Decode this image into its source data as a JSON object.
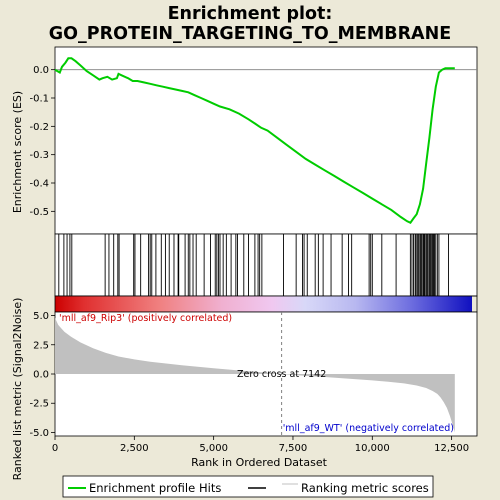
{
  "chart_data": {
    "type": "line",
    "title_line1": "Enrichment plot:",
    "title_line2": "GO_PROTEIN_TARGETING_TO_MEMBRANE",
    "xlabel": "Rank in Ordered Dataset",
    "ylabel_top": "Enrichment score (ES)",
    "ylabel_bottom": "Ranked list metric (Signal2Noise)",
    "xlim": [
      0,
      13300
    ],
    "x_ticks": [
      0,
      2500,
      5000,
      7500,
      10000,
      12500
    ],
    "x_tick_labels": [
      "0",
      "2,500",
      "5,000",
      "7,500",
      "10,000",
      "12,500"
    ],
    "es_ylim": [
      -0.58,
      0.08
    ],
    "es_ticks": [
      0.0,
      -0.1,
      -0.2,
      -0.3,
      -0.4,
      -0.5
    ],
    "es_tick_labels": [
      "0.0",
      "-0.1",
      "-0.2",
      "-0.3",
      "-0.4",
      "-0.5"
    ],
    "metric_ylim": [
      -5.3,
      5.3
    ],
    "metric_ticks": [
      5.0,
      2.5,
      0.0,
      -2.5,
      -5.0
    ],
    "metric_tick_labels": [
      "5.0",
      "2.5",
      "0.0",
      "-2.5",
      "-5.0"
    ],
    "es_curve": {
      "x": [
        0,
        150,
        220,
        330,
        420,
        520,
        650,
        800,
        1000,
        1200,
        1400,
        1500,
        1650,
        1800,
        1950,
        2000,
        2100,
        2300,
        2450,
        2600,
        2800,
        3000,
        3200,
        3400,
        3600,
        3800,
        4000,
        4200,
        4400,
        4600,
        4800,
        5000,
        5200,
        5500,
        5800,
        6100,
        6300,
        6500,
        6700,
        7000,
        7300,
        7600,
        7900,
        8200,
        8500,
        8800,
        9100,
        9400,
        9700,
        10000,
        10300,
        10600,
        10900,
        11100,
        11200,
        11300,
        11400,
        11500,
        11600,
        11700,
        11800,
        11900,
        12000,
        12100,
        12200,
        12300,
        12400,
        12500,
        12600
      ],
      "y": [
        0.0,
        -0.01,
        0.01,
        0.025,
        0.04,
        0.04,
        0.03,
        0.015,
        -0.005,
        -0.02,
        -0.035,
        -0.03,
        -0.025,
        -0.035,
        -0.03,
        -0.015,
        -0.02,
        -0.03,
        -0.04,
        -0.04,
        -0.045,
        -0.05,
        -0.055,
        -0.06,
        -0.065,
        -0.07,
        -0.075,
        -0.08,
        -0.09,
        -0.1,
        -0.11,
        -0.12,
        -0.13,
        -0.14,
        -0.155,
        -0.175,
        -0.19,
        -0.205,
        -0.215,
        -0.24,
        -0.265,
        -0.29,
        -0.315,
        -0.335,
        -0.355,
        -0.375,
        -0.395,
        -0.415,
        -0.435,
        -0.455,
        -0.475,
        -0.495,
        -0.52,
        -0.535,
        -0.54,
        -0.525,
        -0.51,
        -0.475,
        -0.42,
        -0.33,
        -0.24,
        -0.14,
        -0.06,
        -0.01,
        0.0,
        0.005,
        0.005,
        0.005,
        0.005
      ]
    },
    "hits": [
      120,
      280,
      380,
      470,
      530,
      1580,
      1700,
      1850,
      1980,
      2020,
      2480,
      2520,
      2700,
      2950,
      3000,
      3050,
      3180,
      3350,
      3480,
      3600,
      3750,
      3880,
      3900,
      4100,
      4200,
      4250,
      4350,
      4450,
      4700,
      4900,
      5050,
      5100,
      5150,
      5200,
      5300,
      5400,
      5550,
      5700,
      5750,
      5950,
      6100,
      6300,
      6400,
      6450,
      6520,
      7200,
      7600,
      7800,
      7850,
      7950,
      8200,
      8300,
      8450,
      8700,
      9050,
      9250,
      9350,
      9900,
      9950,
      10000,
      10300,
      10750,
      11200,
      11250,
      11300,
      11350,
      11380,
      11420,
      11460,
      11500,
      11530,
      11560,
      11600,
      11630,
      11660,
      11700,
      11730,
      11760,
      11800,
      11830,
      11860,
      11900,
      11930,
      11960,
      12000,
      12050,
      12100,
      12400
    ],
    "metric_curve": {
      "x": [
        0,
        50,
        100,
        200,
        300,
        500,
        800,
        1200,
        1600,
        2000,
        2500,
        3000,
        3500,
        4000,
        4500,
        5000,
        5500,
        6000,
        6500,
        7000,
        7142,
        7500,
        8000,
        8500,
        9000,
        9500,
        10000,
        10500,
        11000,
        11400,
        11700,
        11900,
        12050,
        12150,
        12250,
        12350,
        12450,
        12550,
        12600
      ],
      "y": [
        4.8,
        4.5,
        4.2,
        3.9,
        3.6,
        3.2,
        2.7,
        2.2,
        1.8,
        1.5,
        1.25,
        1.05,
        0.9,
        0.75,
        0.62,
        0.5,
        0.38,
        0.26,
        0.15,
        0.05,
        0.0,
        -0.08,
        -0.18,
        -0.26,
        -0.35,
        -0.45,
        -0.55,
        -0.66,
        -0.8,
        -0.98,
        -1.2,
        -1.45,
        -1.7,
        -2.0,
        -2.4,
        -2.9,
        -3.6,
        -4.5,
        -5.0
      ]
    },
    "zero_cross": 7142,
    "zero_cross_label": "Zero cross at 7142",
    "pos_label": "'mll_af9_Rip3' (positively correlated)",
    "neg_label": "'mll_af9_WT' (negatively correlated)",
    "legend": [
      "Enrichment profile",
      "Hits",
      "Ranking metric scores"
    ],
    "colors": {
      "es_line": "#00cc00",
      "hit": "#000000",
      "metric_fill": "#c0c0c0",
      "pos_text": "#cc0000",
      "neg_text": "#0000cc",
      "zero_line": "#808080",
      "background": "#ece9d8"
    }
  }
}
